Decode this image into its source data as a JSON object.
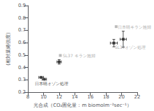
{
  "chart_data": {
    "type": "scatter",
    "xlabel": "光合成（CO₂固化量：m biomolm⁻²sec⁻¹）",
    "ylabel": "(相対葉綣強度)",
    "x": [
      9.7,
      10.1,
      12.0,
      12.15,
      19.0,
      20.2,
      19.3
    ],
    "values": [
      0.32,
      0.305,
      0.445,
      0.497,
      0.597,
      0.628,
      0.73
    ],
    "xerr": [
      0.3,
      0.28,
      0.28,
      0.0,
      0.45,
      0.4,
      0.0
    ],
    "yerr": [
      0.0,
      0.0,
      0.018,
      0.0,
      0.03,
      0.065,
      0.0
    ],
    "colors": [
      "#222222",
      "#222222",
      "#222222",
      "#aaaaaa",
      "#222222",
      "#222222",
      "#aaaaaa"
    ],
    "marker": "square",
    "xlim": [
      8,
      22
    ],
    "ylim": [
      0.2,
      0.9
    ],
    "xticks": [
      8,
      10,
      12,
      14,
      16,
      18,
      20,
      22
    ],
    "yticks": [
      0.2,
      0.3,
      0.4,
      0.5,
      0.6,
      0.7,
      0.8,
      0.9
    ],
    "grid": false,
    "annotations": [
      {
        "x": 8.9,
        "y": 0.272,
        "text": "日本晴オゾン処理",
        "color": "#222222"
      },
      {
        "x": 12.45,
        "y": 0.497,
        "text": "SL37 キラン姓婦",
        "color": "#999999"
      },
      {
        "x": 19.1,
        "y": 0.565,
        "text": "SL37オゾン処理",
        "color": "#999999"
      },
      {
        "x": 19.5,
        "y": 0.73,
        "text": "日本晴キラン姓婦",
        "color": "#999999"
      }
    ]
  }
}
